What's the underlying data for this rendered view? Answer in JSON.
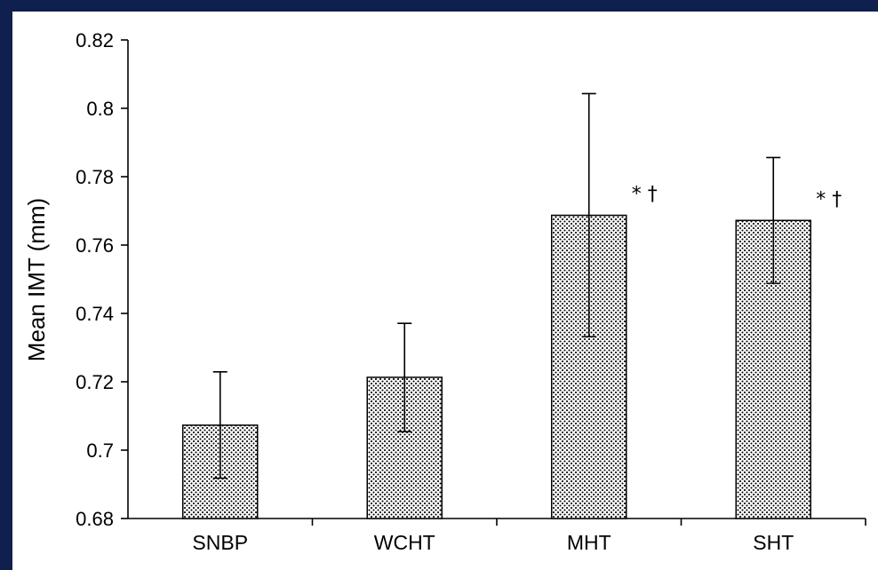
{
  "chart_data": {
    "type": "bar",
    "categories": [
      "SNBP",
      "WCHT",
      "MHT",
      "SHT"
    ],
    "values": [
      0.7073,
      0.7213,
      0.7687,
      0.7672
    ],
    "error_low": [
      0.6918,
      0.7054,
      0.7332,
      0.7488
    ],
    "error_high": [
      0.7229,
      0.7371,
      0.8043,
      0.7856
    ],
    "annotations": [
      "",
      "",
      "* †",
      "* †"
    ],
    "ylabel": "Mean IMT (mm)",
    "xlabel": "",
    "ylim": [
      0.68,
      0.82
    ],
    "yticks": [
      0.68,
      0.7,
      0.72,
      0.74,
      0.76,
      0.78,
      0.8,
      0.82
    ],
    "ytick_labels": [
      "0.68",
      "0.7",
      "0.72",
      "0.74",
      "0.76",
      "0.78",
      "0.8",
      "0.82"
    ],
    "bar_pattern": "stippled",
    "colors": {
      "background": "#0f1f4e",
      "plot": "#ffffff",
      "ink": "#000000"
    }
  }
}
